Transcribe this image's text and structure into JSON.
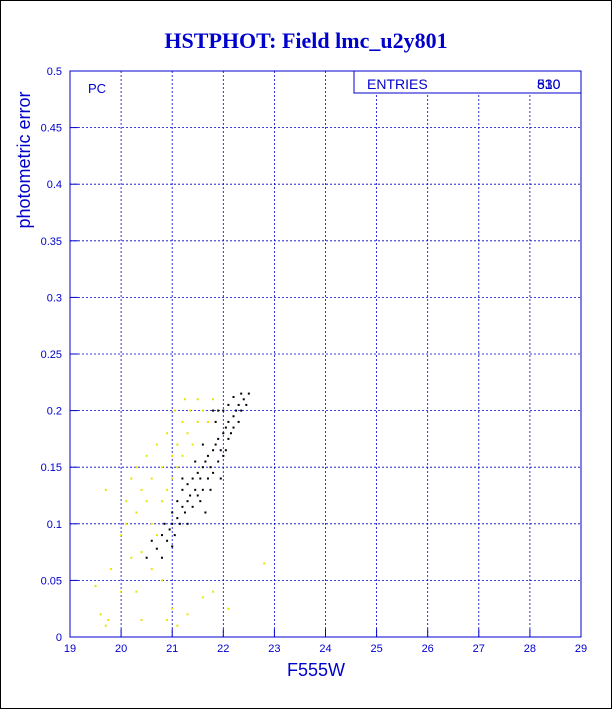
{
  "chart_data": {
    "type": "scatter",
    "title": "HSTPHOT: Field lmc_u2y801",
    "x_label": "F555W",
    "y_label": "photometric error",
    "annotation": "PC",
    "stats_label": "ENTRIES",
    "stats_values": [
      "830",
      "510"
    ],
    "xlim": [
      19,
      29
    ],
    "xticks": [
      19,
      20,
      21,
      22,
      23,
      24,
      25,
      26,
      27,
      28,
      29
    ],
    "ylim": [
      0,
      0.5
    ],
    "yticks": [
      0,
      0.05,
      0.1,
      0.15,
      0.2,
      0.25,
      0.3,
      0.35,
      0.4,
      0.45,
      0.5
    ],
    "grid": true,
    "axis_color": "#0000cc",
    "series": [
      {
        "color": "#000000",
        "x": [
          20.5,
          20.6,
          20.7,
          20.8,
          20.85,
          20.9,
          20.95,
          21.0,
          21.0,
          21.05,
          21.1,
          21.1,
          21.15,
          21.2,
          21.2,
          21.25,
          21.3,
          21.3,
          21.35,
          21.4,
          21.4,
          21.45,
          21.5,
          21.5,
          21.55,
          21.6,
          21.6,
          21.65,
          21.7,
          21.7,
          21.75,
          21.8,
          21.8,
          21.85,
          21.9,
          21.9,
          21.95,
          22.0,
          22.0,
          22.05,
          22.1,
          22.1,
          22.15,
          22.2,
          22.2,
          22.25,
          22.3,
          22.3,
          22.35,
          22.4,
          22.45,
          22.5,
          21.9,
          22.0,
          21.85,
          21.95,
          21.6,
          21.55,
          21.3,
          21.0,
          20.8,
          22.1,
          22.2,
          21.75,
          21.65,
          22.05,
          21.45,
          21.2,
          22.35,
          21.8
        ],
        "y": [
          0.07,
          0.085,
          0.078,
          0.09,
          0.1,
          0.085,
          0.095,
          0.1,
          0.11,
          0.09,
          0.105,
          0.12,
          0.1,
          0.115,
          0.13,
          0.11,
          0.12,
          0.135,
          0.125,
          0.14,
          0.115,
          0.13,
          0.145,
          0.125,
          0.14,
          0.15,
          0.13,
          0.155,
          0.14,
          0.16,
          0.15,
          0.165,
          0.145,
          0.17,
          0.155,
          0.175,
          0.165,
          0.18,
          0.16,
          0.185,
          0.175,
          0.19,
          0.18,
          0.195,
          0.185,
          0.2,
          0.19,
          0.205,
          0.2,
          0.21,
          0.205,
          0.215,
          0.2,
          0.2,
          0.19,
          0.14,
          0.17,
          0.12,
          0.1,
          0.08,
          0.07,
          0.205,
          0.212,
          0.13,
          0.11,
          0.165,
          0.155,
          0.14,
          0.215,
          0.2
        ]
      },
      {
        "color": "#e6e600",
        "x": [
          19.5,
          19.6,
          19.7,
          19.75,
          19.7,
          19.8,
          20.0,
          20.1,
          20.1,
          20.2,
          20.2,
          20.3,
          20.3,
          20.4,
          20.4,
          20.5,
          20.5,
          20.6,
          20.6,
          20.7,
          20.7,
          20.8,
          20.8,
          20.9,
          20.9,
          21.0,
          21.0,
          21.05,
          21.1,
          21.1,
          21.2,
          21.2,
          21.25,
          21.3,
          21.35,
          21.4,
          21.5,
          21.5,
          21.6,
          21.7,
          21.8,
          21.0,
          21.1,
          21.3,
          21.8,
          22.1,
          22.8,
          20.9,
          20.6,
          20.4,
          20.3,
          21.6,
          20.8,
          20.0
        ],
        "y": [
          0.045,
          0.02,
          0.01,
          0.015,
          0.13,
          0.06,
          0.04,
          0.1,
          0.12,
          0.14,
          0.07,
          0.15,
          0.11,
          0.13,
          0.015,
          0.16,
          0.12,
          0.14,
          0.1,
          0.17,
          0.09,
          0.15,
          0.12,
          0.18,
          0.13,
          0.16,
          0.14,
          0.2,
          0.17,
          0.15,
          0.19,
          0.16,
          0.21,
          0.18,
          0.2,
          0.17,
          0.19,
          0.21,
          0.2,
          0.19,
          0.21,
          0.025,
          0.01,
          0.02,
          0.04,
          0.025,
          0.065,
          0.015,
          0.06,
          0.075,
          0.04,
          0.035,
          0.05,
          0.09
        ]
      }
    ]
  }
}
